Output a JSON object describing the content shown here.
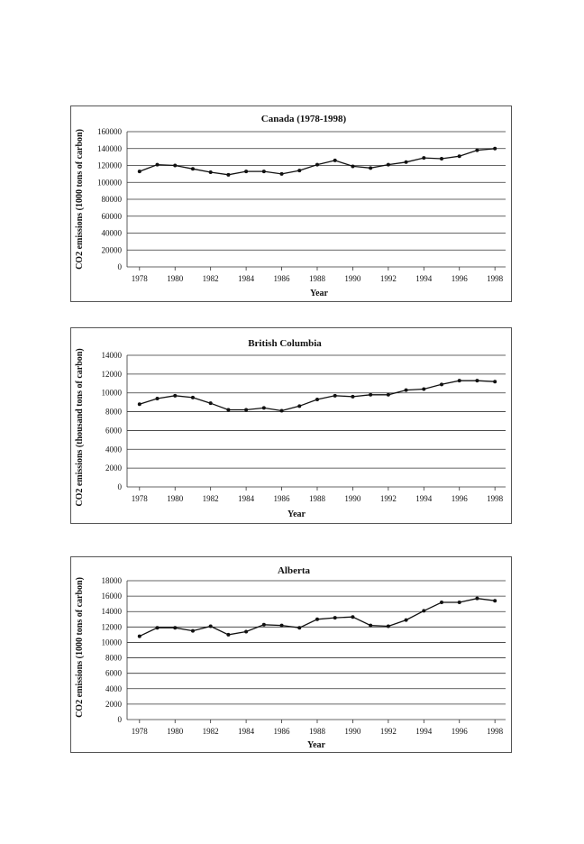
{
  "chart_data": [
    {
      "type": "line",
      "title": "Canada (1978-1998)",
      "xlabel": "Year",
      "ylabel": "CO2 emissions (1000 tons of carbon)",
      "ylim": [
        0,
        160000
      ],
      "yticks": [
        0,
        20000,
        40000,
        60000,
        80000,
        100000,
        120000,
        140000,
        160000
      ],
      "xlim": [
        1977.3,
        1998.6
      ],
      "xticks": [
        1978,
        1980,
        1982,
        1984,
        1986,
        1988,
        1990,
        1992,
        1994,
        1996,
        1998
      ],
      "grid": true,
      "series": [
        {
          "x": [
            1978,
            1979,
            1980,
            1981,
            1982,
            1983,
            1984,
            1985,
            1986,
            1987,
            1988,
            1989,
            1990,
            1991,
            1992,
            1993,
            1994,
            1995,
            1996,
            1997,
            1998
          ],
          "values": [
            113000,
            121000,
            120000,
            116000,
            112000,
            109000,
            113000,
            113000,
            110000,
            114000,
            121000,
            126000,
            119000,
            117000,
            121000,
            124000,
            129000,
            128000,
            131000,
            138000,
            140000
          ]
        }
      ]
    },
    {
      "type": "line",
      "title": "British Columbia",
      "xlabel": "Year",
      "ylabel": "CO2 emissions (thousand tons of carbon)",
      "ylim": [
        0,
        14000
      ],
      "yticks": [
        0,
        2000,
        4000,
        6000,
        8000,
        10000,
        12000,
        14000
      ],
      "xlim": [
        1977.3,
        1998.6
      ],
      "xticks": [
        1978,
        1980,
        1982,
        1984,
        1986,
        1988,
        1990,
        1992,
        1994,
        1996,
        1998
      ],
      "grid": true,
      "series": [
        {
          "x": [
            1978,
            1979,
            1980,
            1981,
            1982,
            1983,
            1984,
            1985,
            1986,
            1987,
            1988,
            1989,
            1990,
            1991,
            1992,
            1993,
            1994,
            1995,
            1996,
            1997,
            1998
          ],
          "values": [
            8800,
            9400,
            9700,
            9500,
            8900,
            8200,
            8200,
            8400,
            8100,
            8600,
            9300,
            9700,
            9600,
            9800,
            9800,
            10300,
            10400,
            10900,
            11300,
            11300,
            11200
          ]
        }
      ]
    },
    {
      "type": "line",
      "title": "Alberta",
      "xlabel": "Year",
      "ylabel": "CO2 emissions (1000 tons of carbon)",
      "ylim": [
        0,
        18000
      ],
      "yticks": [
        0,
        2000,
        4000,
        6000,
        8000,
        10000,
        12000,
        14000,
        16000,
        18000
      ],
      "xlim": [
        1977.3,
        1998.6
      ],
      "xticks": [
        1978,
        1980,
        1982,
        1984,
        1986,
        1988,
        1990,
        1992,
        1994,
        1996,
        1998
      ],
      "grid": true,
      "series": [
        {
          "x": [
            1978,
            1979,
            1980,
            1981,
            1982,
            1983,
            1984,
            1985,
            1986,
            1987,
            1988,
            1989,
            1990,
            1991,
            1992,
            1993,
            1994,
            1995,
            1996,
            1997,
            1998
          ],
          "values": [
            10800,
            11900,
            11900,
            11500,
            12100,
            11000,
            11400,
            12300,
            12200,
            11900,
            13000,
            13200,
            13300,
            12200,
            12100,
            12900,
            14100,
            15200,
            15200,
            15700,
            15400
          ]
        }
      ]
    }
  ]
}
